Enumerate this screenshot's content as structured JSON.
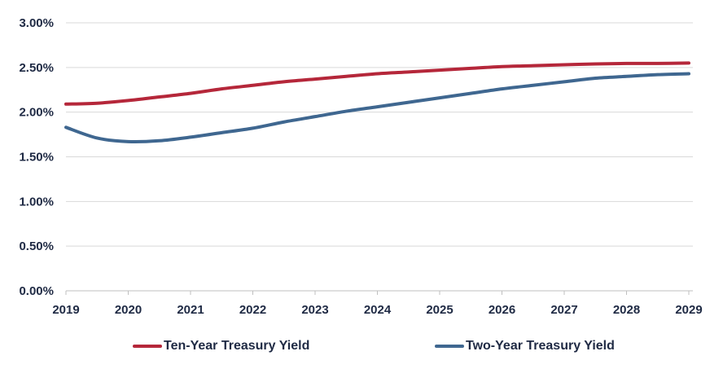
{
  "chart_data": {
    "type": "line",
    "title": "",
    "xlabel": "",
    "ylabel": "",
    "x_ticks": [
      "2019",
      "2020",
      "2021",
      "2022",
      "2023",
      "2024",
      "2025",
      "2026",
      "2027",
      "2028",
      "2029"
    ],
    "y_ticks": [
      "0.00%",
      "0.50%",
      "1.00%",
      "1.50%",
      "2.00%",
      "2.50%",
      "3.00%"
    ],
    "xlim": [
      2019,
      2029
    ],
    "ylim": [
      0,
      3.0
    ],
    "grid": "horizontal",
    "legend_position": "bottom",
    "series": [
      {
        "name": "Ten-Year Treasury Yield",
        "color": "#b5273a",
        "x": [
          2019,
          2019.5,
          2020,
          2020.5,
          2021,
          2021.5,
          2022,
          2022.5,
          2023,
          2023.5,
          2024,
          2024.5,
          2025,
          2025.5,
          2026,
          2026.5,
          2027,
          2027.5,
          2028,
          2028.5,
          2029
        ],
        "y": [
          2.09,
          2.1,
          2.13,
          2.17,
          2.21,
          2.26,
          2.3,
          2.34,
          2.37,
          2.4,
          2.43,
          2.45,
          2.47,
          2.49,
          2.51,
          2.52,
          2.53,
          2.54,
          2.545,
          2.545,
          2.55
        ]
      },
      {
        "name": "Two-Year Treasury Yield",
        "color": "#3f6790",
        "x": [
          2019,
          2019.5,
          2020,
          2020.5,
          2021,
          2021.5,
          2022,
          2022.5,
          2023,
          2023.5,
          2024,
          2024.5,
          2025,
          2025.5,
          2026,
          2026.5,
          2027,
          2027.5,
          2028,
          2028.5,
          2029
        ],
        "y": [
          1.83,
          1.71,
          1.67,
          1.68,
          1.72,
          1.77,
          1.82,
          1.89,
          1.95,
          2.01,
          2.06,
          2.11,
          2.16,
          2.21,
          2.26,
          2.3,
          2.34,
          2.38,
          2.4,
          2.42,
          2.43
        ]
      }
    ]
  }
}
